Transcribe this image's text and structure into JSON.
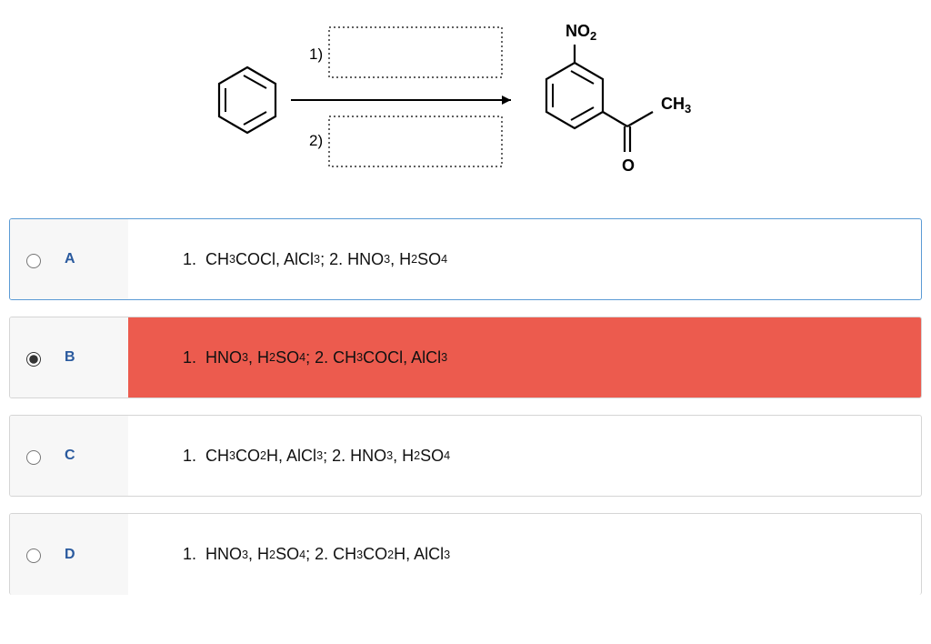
{
  "diagram": {
    "reagent_label_1": "1)",
    "reagent_label_2": "2)",
    "substituent_no2": "NO",
    "substituent_no2_sub": "2",
    "substituent_ch3": "CH",
    "substituent_ch3_sub": "3",
    "substituent_o": "O",
    "colors": {
      "stroke": "#000000",
      "box_dash": "2,2"
    }
  },
  "options": [
    {
      "id": "A",
      "letter": "A",
      "selected": false,
      "state": "correct-outline",
      "formula_html": "1.&nbsp;&nbsp;CH<sub>3</sub>COCl, AlCl<sub>3</sub>; 2. HNO<sub>3</sub>, H<sub>2</sub>SO<sub>4</sub>"
    },
    {
      "id": "B",
      "letter": "B",
      "selected": true,
      "state": "wrong",
      "formula_html": "1.&nbsp;&nbsp;HNO<sub>3</sub>, H<sub>2</sub>SO<sub>4</sub>; 2. CH<sub>3</sub>COCl, AlCl<sub>3</sub>"
    },
    {
      "id": "C",
      "letter": "C",
      "selected": false,
      "state": "normal",
      "formula_html": "1.&nbsp;&nbsp;CH<sub>3</sub>CO<sub>2</sub>H, AlCl<sub>3</sub>; 2. HNO<sub>3</sub>, H<sub>2</sub>SO<sub>4</sub>"
    },
    {
      "id": "D",
      "letter": "D",
      "selected": false,
      "state": "no-bottom",
      "formula_html": "1.&nbsp;&nbsp;HNO<sub>3</sub>, H<sub>2</sub>SO<sub>4</sub>; 2. CH<sub>3</sub>CO<sub>2</sub>H, AlCl<sub>3</sub>"
    }
  ],
  "colors": {
    "wrong_bg": "#ec5b4e",
    "outline_blue": "#5b9bd5",
    "letter_color": "#2a5a9e",
    "border_gray": "#d5d5d5",
    "cell_bg": "#f7f7f7"
  }
}
